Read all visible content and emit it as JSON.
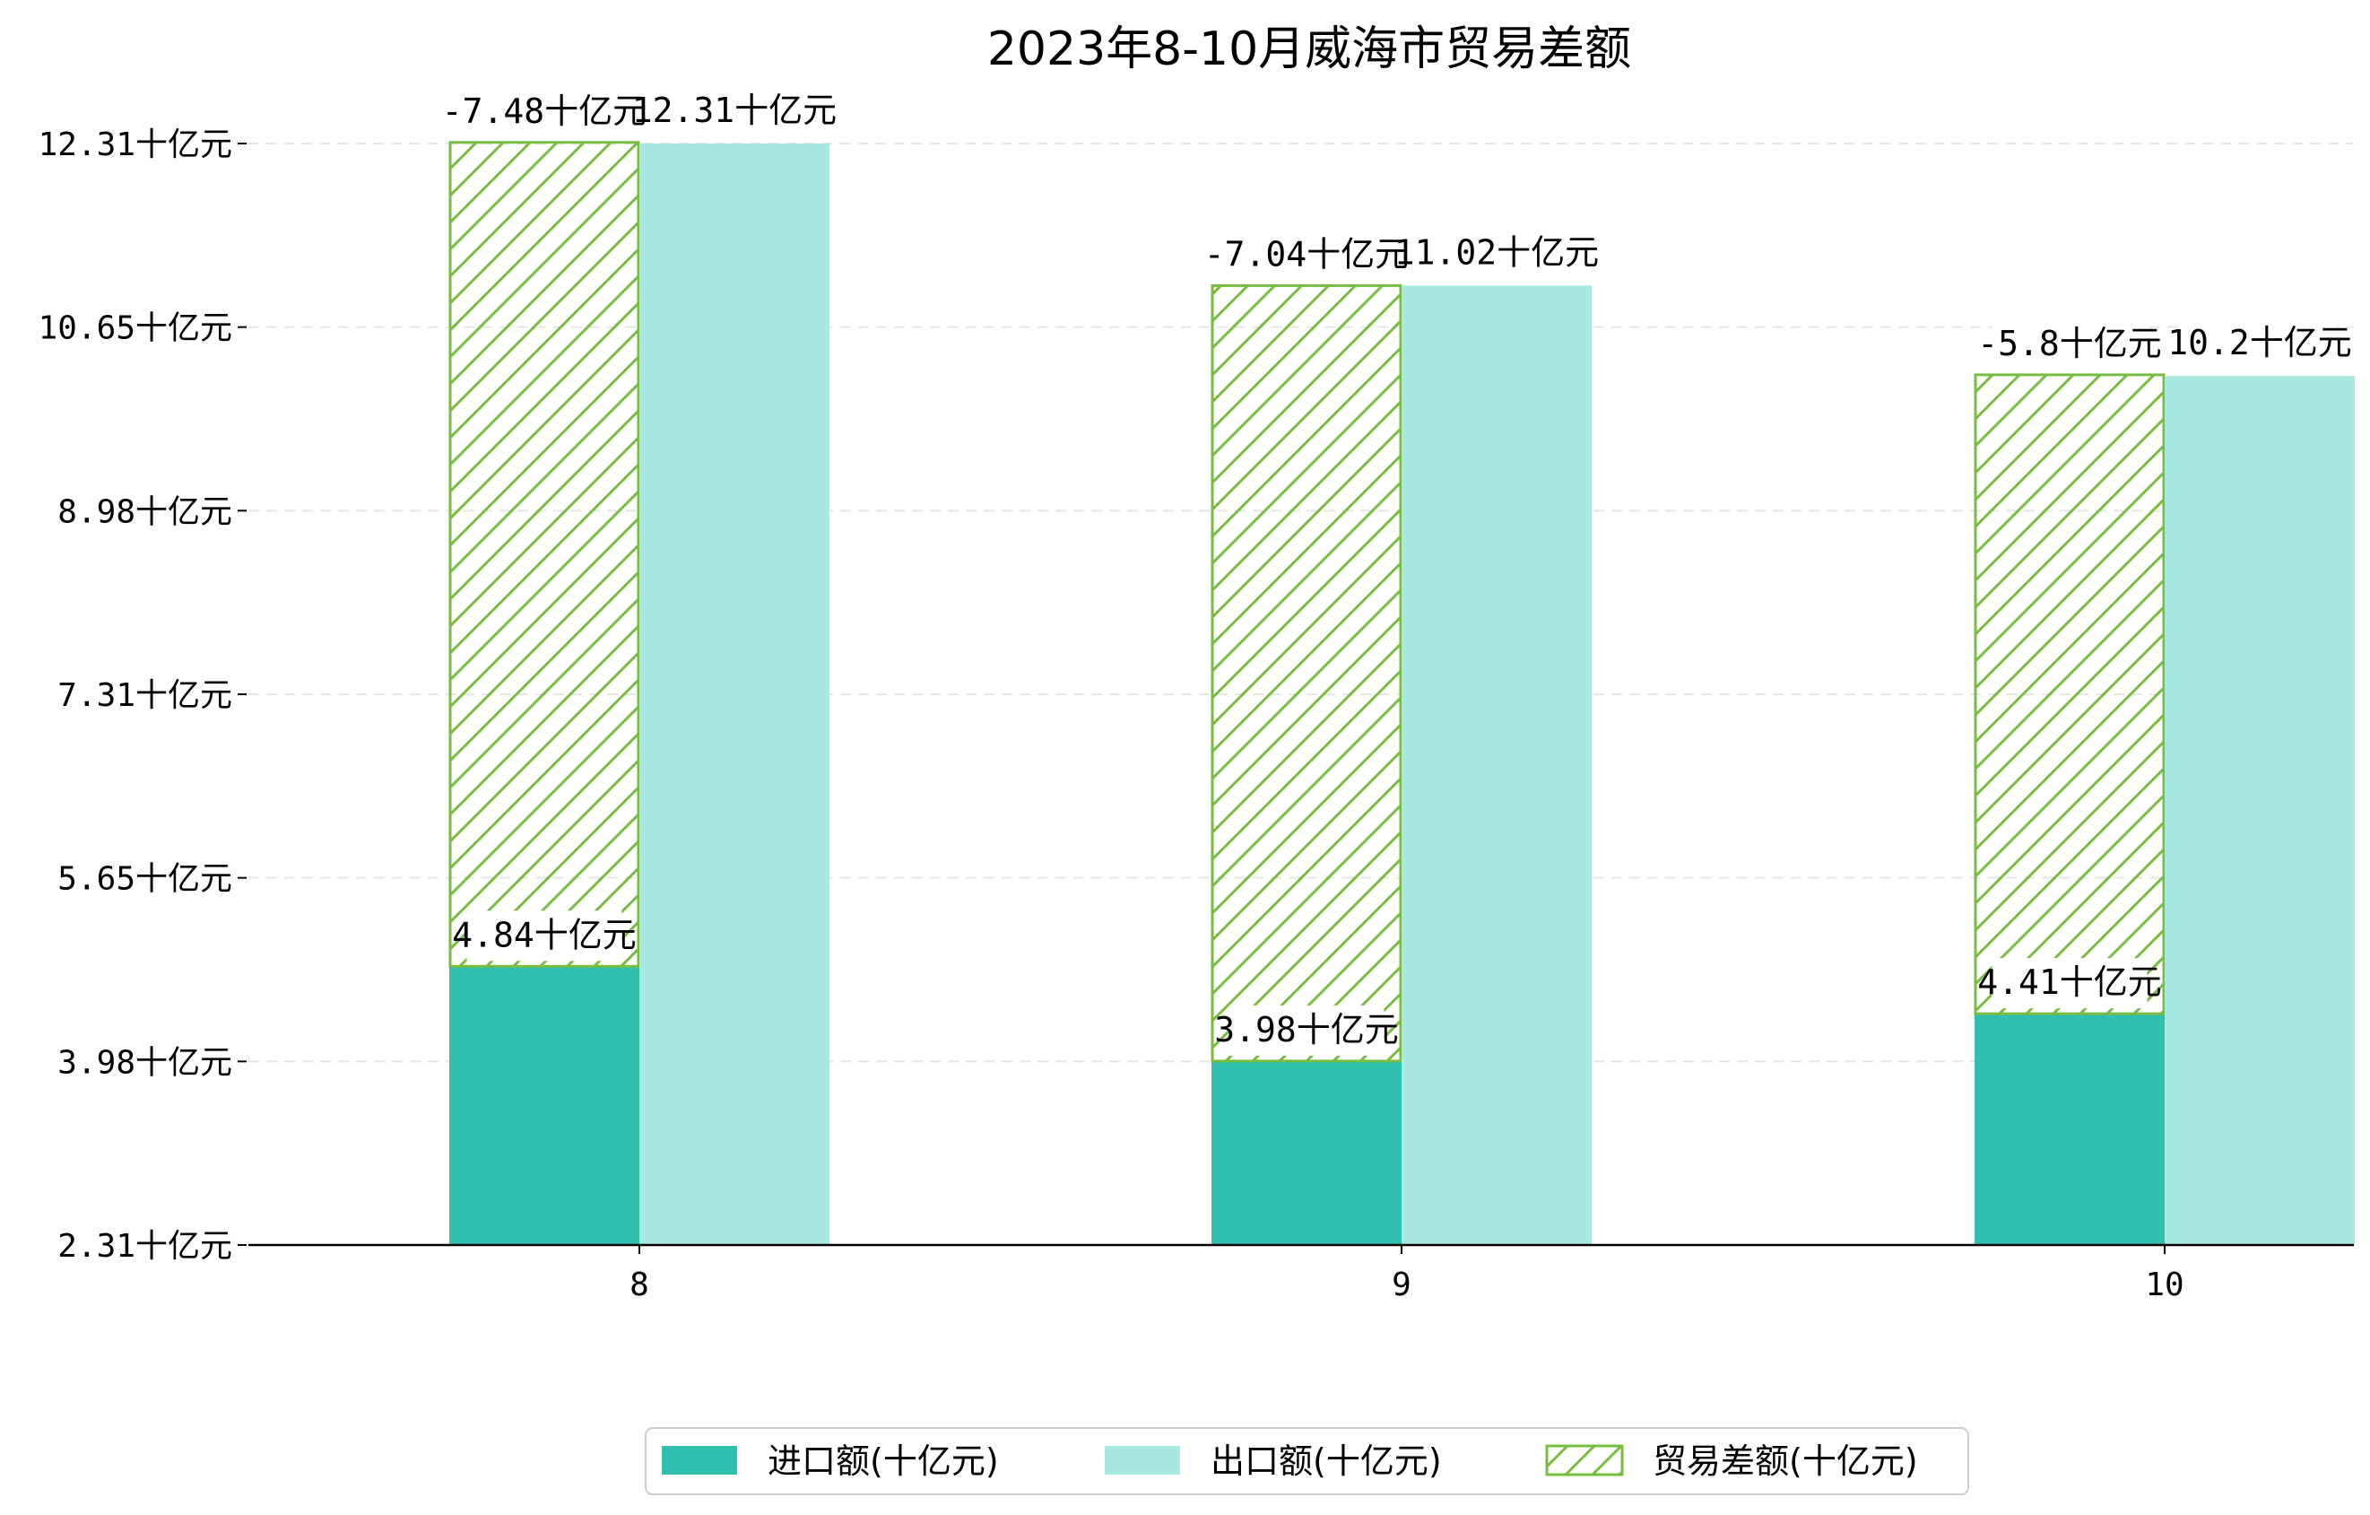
{
  "chart_data": {
    "type": "bar",
    "title": "2023年8-10月威海市贸易差额",
    "categories": [
      "8",
      "9",
      "10"
    ],
    "ylim": [
      2.31,
      12.31
    ],
    "yticks": [
      "2.31十亿元",
      "3.98十亿元",
      "5.65十亿元",
      "7.31十亿元",
      "8.98十亿元",
      "10.65十亿元",
      "12.31十亿元"
    ],
    "series": [
      {
        "name": "进口额(十亿元)",
        "values": [
          4.84,
          3.98,
          4.41
        ],
        "labels": [
          "4.84十亿元",
          "3.98十亿元",
          "4.41十亿元"
        ],
        "color": "#31bfb0"
      },
      {
        "name": "出口额(十亿元)",
        "values": [
          12.31,
          11.02,
          10.2
        ],
        "labels": [
          "12.31十亿元",
          "11.02十亿元",
          "10.2十亿元"
        ],
        "color": "#a8e7e2"
      },
      {
        "name": "贸易差额(十亿元)",
        "values": [
          -7.48,
          -7.04,
          -5.8
        ],
        "labels": [
          "-7.48十亿元",
          "-7.04十亿元",
          "-5.8十亿元"
        ],
        "color": "#77bd42"
      }
    ],
    "grid": "horizontal-dashed",
    "legend": "bottom-center"
  }
}
